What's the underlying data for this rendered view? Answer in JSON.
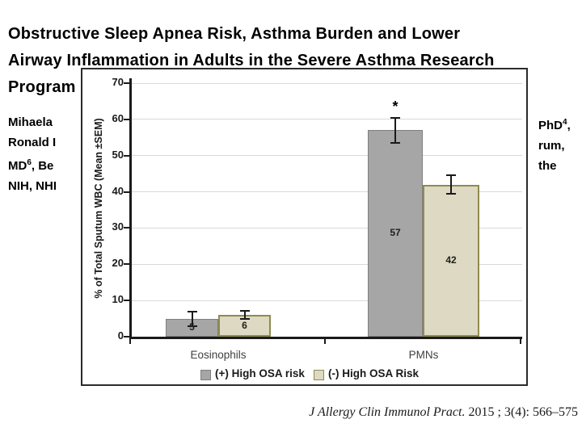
{
  "slide": {
    "title_line1": "Obstructive Sleep Apnea Risk, Asthma Burden and Lower",
    "title_line2": "Airway Inflammation in Adults in the Severe Asthma Research",
    "title_line3": "Program",
    "authors_left": [
      {
        "pre": "Mihaela"
      },
      {
        "pre": "Ronald I"
      },
      {
        "pre": "MD",
        "sup": "6",
        "post": ", Be"
      },
      {
        "pre": "NIH, NHI"
      }
    ],
    "authors_right": [
      {
        "pre": "PhD",
        "sup": "4",
        "post": ","
      },
      {
        "pre": "rum,"
      },
      {
        "pre": "the"
      }
    ],
    "citation_italic": "J Allergy Clin Immunol Pract.",
    "citation_rest": " 2015 ; 3(4): 566–575"
  },
  "chart_data": {
    "type": "bar",
    "title": "",
    "xlabel": "",
    "ylabel": "% of Total Sputum WBC (Mean ±SEM)",
    "categories": [
      "Eosinophils",
      "PMNs"
    ],
    "series": [
      {
        "name": "(+) High OSA risk",
        "values": [
          5,
          57
        ],
        "sem": [
          2,
          3.5
        ],
        "labels": [
          "5",
          "57"
        ],
        "color": "#a6a6a6",
        "border": "#7f7f7f"
      },
      {
        "name": "(-) High OSA Risk",
        "values": [
          6,
          42
        ],
        "sem": [
          1.2,
          2.6
        ],
        "labels": [
          "6",
          "42"
        ],
        "color": "#ddd9c3",
        "border": "#8f8b4e"
      }
    ],
    "annotations": [
      {
        "text": "*",
        "series": 0,
        "category": 1
      }
    ],
    "ylim": [
      0,
      70
    ],
    "yticks": [
      70,
      60,
      50,
      40,
      30,
      20,
      10,
      0
    ],
    "grid": true,
    "legend_position": "bottom"
  }
}
